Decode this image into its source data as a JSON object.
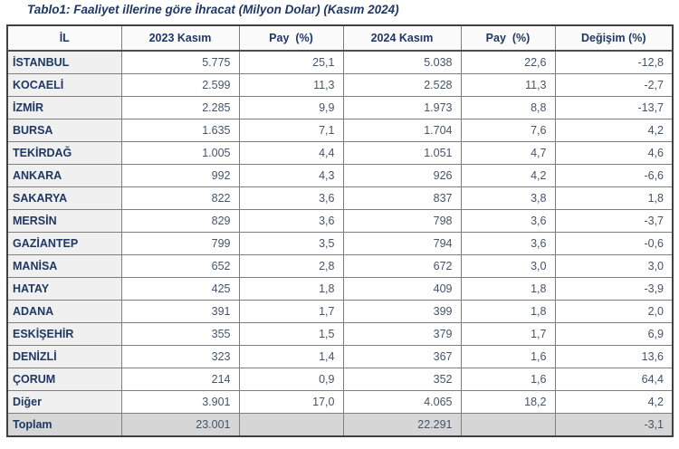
{
  "title": "Tablo1: Faaliyet illerine göre İhracat (Milyon Dolar) (Kasım 2024)",
  "table": {
    "columns": [
      "İL",
      "2023 Kasım",
      "Pay  (%)",
      "2024 Kasım",
      "Pay  (%)",
      "Değişim (%)"
    ],
    "rows": [
      [
        "İSTANBUL",
        "5.775",
        "25,1",
        "5.038",
        "22,6",
        "-12,8"
      ],
      [
        "KOCAELİ",
        "2.599",
        "11,3",
        "2.528",
        "11,3",
        "-2,7"
      ],
      [
        "İZMİR",
        "2.285",
        "9,9",
        "1.973",
        "8,8",
        "-13,7"
      ],
      [
        "BURSA",
        "1.635",
        "7,1",
        "1.704",
        "7,6",
        "4,2"
      ],
      [
        "TEKİRDAĞ",
        "1.005",
        "4,4",
        "1.051",
        "4,7",
        "4,6"
      ],
      [
        "ANKARA",
        "992",
        "4,3",
        "926",
        "4,2",
        "-6,6"
      ],
      [
        "SAKARYA",
        "822",
        "3,6",
        "837",
        "3,8",
        "1,8"
      ],
      [
        "MERSİN",
        "829",
        "3,6",
        "798",
        "3,6",
        "-3,7"
      ],
      [
        "GAZİANTEP",
        "799",
        "3,5",
        "794",
        "3,6",
        "-0,6"
      ],
      [
        "MANİSA",
        "652",
        "2,8",
        "672",
        "3,0",
        "3,0"
      ],
      [
        "HATAY",
        "425",
        "1,8",
        "409",
        "1,8",
        "-3,9"
      ],
      [
        "ADANA",
        "391",
        "1,7",
        "399",
        "1,8",
        "2,0"
      ],
      [
        "ESKİŞEHİR",
        "355",
        "1,5",
        "379",
        "1,7",
        "6,9"
      ],
      [
        "DENİZLİ",
        "323",
        "1,4",
        "367",
        "1,6",
        "13,6"
      ],
      [
        "ÇORUM",
        "214",
        "0,9",
        "352",
        "1,6",
        "64,4"
      ],
      [
        "Diğer",
        "3.901",
        "17,0",
        "4.065",
        "18,2",
        "4,2"
      ]
    ],
    "total_row": [
      "Toplam",
      "23.001",
      "",
      "22.291",
      "",
      "-3,1"
    ]
  },
  "colors": {
    "title_text": "#1F3864",
    "header_text": "#1F3864",
    "province_text": "#1F3864",
    "value_text": "#44546A",
    "province_cell_bg": "#F0F0F0",
    "header_bg": "#FBFBFB",
    "total_row_bg": "#D6D6D6",
    "outer_border": "#404040",
    "inner_border": "#7F7F7F"
  }
}
